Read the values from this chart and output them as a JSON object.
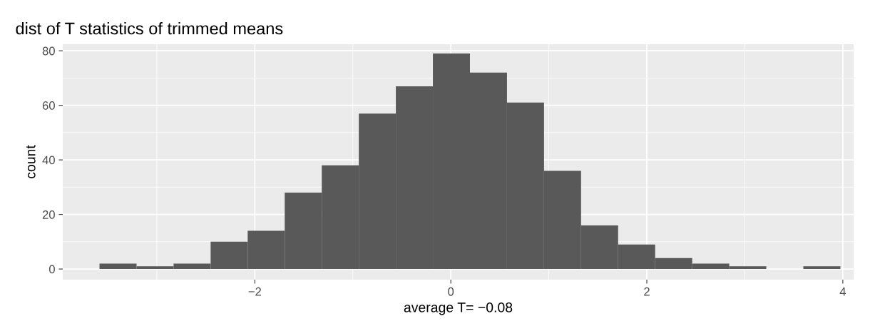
{
  "chart_data": {
    "type": "histogram",
    "title": "dist of T statistics of trimmed means",
    "xlabel": "average T= −0.08",
    "ylabel": "count",
    "bins": [
      -3.585,
      -3.207,
      -2.829,
      -2.451,
      -2.073,
      -1.695,
      -1.317,
      -0.939,
      -0.561,
      -0.183,
      0.195,
      0.573,
      0.951,
      1.329,
      1.707,
      2.085,
      2.463,
      2.841,
      3.219,
      3.597,
      3.975
    ],
    "values": [
      2,
      1,
      2,
      10,
      14,
      28,
      38,
      57,
      67,
      79,
      72,
      61,
      36,
      16,
      9,
      4,
      2,
      1,
      0,
      1
    ],
    "color": "#595959",
    "xlim": [
      -3.96,
      4.11
    ],
    "ylim": [
      -3.9,
      82.4
    ],
    "xticks": [
      {
        "value": -2,
        "label": "−2"
      },
      0,
      2,
      4
    ],
    "yticks": [
      0,
      20,
      40,
      60,
      80
    ],
    "grid": true,
    "legend": false
  }
}
